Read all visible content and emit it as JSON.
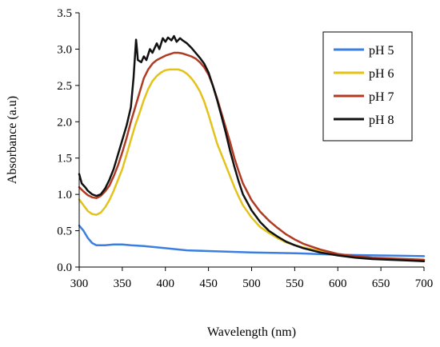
{
  "chart_data": {
    "type": "line",
    "title": "",
    "xlabel": "Wavelength (nm)",
    "ylabel": "Absorbance (a.u)",
    "xlim": [
      300,
      700
    ],
    "ylim": [
      0,
      3.5
    ],
    "xticks": [
      300,
      350,
      400,
      450,
      500,
      550,
      600,
      650,
      700
    ],
    "yticks": [
      0.0,
      0.5,
      1.0,
      1.5,
      2.0,
      2.5,
      3.0,
      3.5
    ],
    "xtick_labels": [
      "300",
      "350",
      "400",
      "450",
      "500",
      "550",
      "600",
      "650",
      "700"
    ],
    "ytick_labels": [
      "0.0",
      "0.5",
      "1.0",
      "1.5",
      "2.0",
      "2.5",
      "3.0",
      "3.5"
    ],
    "grid": false,
    "legend_position": "top-right",
    "series": [
      {
        "name": "pH 5",
        "color": "#3b7fe0",
        "points": [
          [
            300,
            0.57
          ],
          [
            305,
            0.5
          ],
          [
            310,
            0.4
          ],
          [
            315,
            0.33
          ],
          [
            320,
            0.3
          ],
          [
            330,
            0.3
          ],
          [
            340,
            0.31
          ],
          [
            350,
            0.31
          ],
          [
            360,
            0.3
          ],
          [
            375,
            0.29
          ],
          [
            400,
            0.26
          ],
          [
            425,
            0.23
          ],
          [
            450,
            0.22
          ],
          [
            500,
            0.2
          ],
          [
            550,
            0.19
          ],
          [
            600,
            0.17
          ],
          [
            650,
            0.16
          ],
          [
            700,
            0.15
          ]
        ]
      },
      {
        "name": "pH 6",
        "color": "#e3c21a",
        "points": [
          [
            300,
            0.93
          ],
          [
            305,
            0.85
          ],
          [
            310,
            0.77
          ],
          [
            315,
            0.73
          ],
          [
            320,
            0.72
          ],
          [
            325,
            0.75
          ],
          [
            330,
            0.82
          ],
          [
            335,
            0.92
          ],
          [
            340,
            1.05
          ],
          [
            345,
            1.2
          ],
          [
            350,
            1.35
          ],
          [
            355,
            1.55
          ],
          [
            360,
            1.75
          ],
          [
            365,
            1.95
          ],
          [
            370,
            2.12
          ],
          [
            375,
            2.3
          ],
          [
            380,
            2.45
          ],
          [
            385,
            2.56
          ],
          [
            390,
            2.63
          ],
          [
            395,
            2.68
          ],
          [
            400,
            2.71
          ],
          [
            405,
            2.72
          ],
          [
            410,
            2.72
          ],
          [
            415,
            2.72
          ],
          [
            420,
            2.7
          ],
          [
            425,
            2.66
          ],
          [
            430,
            2.6
          ],
          [
            435,
            2.52
          ],
          [
            440,
            2.42
          ],
          [
            445,
            2.28
          ],
          [
            450,
            2.1
          ],
          [
            455,
            1.9
          ],
          [
            460,
            1.7
          ],
          [
            465,
            1.55
          ],
          [
            470,
            1.4
          ],
          [
            475,
            1.25
          ],
          [
            480,
            1.1
          ],
          [
            485,
            0.97
          ],
          [
            490,
            0.85
          ],
          [
            500,
            0.68
          ],
          [
            510,
            0.55
          ],
          [
            520,
            0.47
          ],
          [
            530,
            0.4
          ],
          [
            540,
            0.34
          ],
          [
            550,
            0.3
          ],
          [
            560,
            0.27
          ],
          [
            580,
            0.22
          ],
          [
            600,
            0.17
          ],
          [
            620,
            0.14
          ],
          [
            640,
            0.12
          ],
          [
            660,
            0.11
          ],
          [
            680,
            0.1
          ],
          [
            700,
            0.09
          ]
        ]
      },
      {
        "name": "pH 7",
        "color": "#b03a22",
        "points": [
          [
            300,
            1.1
          ],
          [
            305,
            1.04
          ],
          [
            310,
            0.99
          ],
          [
            315,
            0.96
          ],
          [
            320,
            0.95
          ],
          [
            325,
            0.98
          ],
          [
            330,
            1.04
          ],
          [
            335,
            1.12
          ],
          [
            340,
            1.25
          ],
          [
            345,
            1.4
          ],
          [
            350,
            1.58
          ],
          [
            355,
            1.78
          ],
          [
            360,
            2.0
          ],
          [
            365,
            2.2
          ],
          [
            370,
            2.4
          ],
          [
            375,
            2.6
          ],
          [
            380,
            2.72
          ],
          [
            385,
            2.8
          ],
          [
            390,
            2.85
          ],
          [
            395,
            2.88
          ],
          [
            400,
            2.91
          ],
          [
            405,
            2.93
          ],
          [
            410,
            2.95
          ],
          [
            415,
            2.95
          ],
          [
            420,
            2.94
          ],
          [
            425,
            2.92
          ],
          [
            430,
            2.9
          ],
          [
            435,
            2.87
          ],
          [
            440,
            2.82
          ],
          [
            445,
            2.75
          ],
          [
            450,
            2.65
          ],
          [
            455,
            2.5
          ],
          [
            460,
            2.32
          ],
          [
            465,
            2.12
          ],
          [
            470,
            1.92
          ],
          [
            475,
            1.72
          ],
          [
            480,
            1.5
          ],
          [
            485,
            1.32
          ],
          [
            490,
            1.15
          ],
          [
            500,
            0.92
          ],
          [
            510,
            0.76
          ],
          [
            520,
            0.64
          ],
          [
            530,
            0.54
          ],
          [
            540,
            0.45
          ],
          [
            550,
            0.38
          ],
          [
            560,
            0.32
          ],
          [
            580,
            0.24
          ],
          [
            600,
            0.18
          ],
          [
            620,
            0.15
          ],
          [
            640,
            0.13
          ],
          [
            660,
            0.12
          ],
          [
            680,
            0.11
          ],
          [
            700,
            0.1
          ]
        ]
      },
      {
        "name": "pH 8",
        "color": "#111111",
        "points": [
          [
            300,
            1.28
          ],
          [
            303,
            1.15
          ],
          [
            307,
            1.1
          ],
          [
            310,
            1.05
          ],
          [
            315,
            1.0
          ],
          [
            320,
            0.98
          ],
          [
            325,
            1.0
          ],
          [
            330,
            1.08
          ],
          [
            335,
            1.2
          ],
          [
            340,
            1.35
          ],
          [
            345,
            1.55
          ],
          [
            350,
            1.75
          ],
          [
            355,
            1.95
          ],
          [
            360,
            2.2
          ],
          [
            363,
            2.6
          ],
          [
            365,
            2.95
          ],
          [
            366,
            3.13
          ],
          [
            367,
            3.0
          ],
          [
            368,
            2.85
          ],
          [
            372,
            2.82
          ],
          [
            375,
            2.9
          ],
          [
            378,
            2.85
          ],
          [
            382,
            3.0
          ],
          [
            385,
            2.95
          ],
          [
            390,
            3.08
          ],
          [
            393,
            3.0
          ],
          [
            397,
            3.15
          ],
          [
            400,
            3.1
          ],
          [
            403,
            3.16
          ],
          [
            407,
            3.12
          ],
          [
            410,
            3.18
          ],
          [
            413,
            3.1
          ],
          [
            417,
            3.15
          ],
          [
            420,
            3.12
          ],
          [
            425,
            3.08
          ],
          [
            430,
            3.02
          ],
          [
            435,
            2.95
          ],
          [
            440,
            2.88
          ],
          [
            445,
            2.8
          ],
          [
            450,
            2.68
          ],
          [
            455,
            2.5
          ],
          [
            460,
            2.3
          ],
          [
            465,
            2.08
          ],
          [
            470,
            1.85
          ],
          [
            475,
            1.6
          ],
          [
            480,
            1.38
          ],
          [
            485,
            1.18
          ],
          [
            490,
            1.0
          ],
          [
            500,
            0.78
          ],
          [
            510,
            0.62
          ],
          [
            520,
            0.5
          ],
          [
            530,
            0.42
          ],
          [
            540,
            0.35
          ],
          [
            550,
            0.3
          ],
          [
            560,
            0.26
          ],
          [
            580,
            0.2
          ],
          [
            600,
            0.16
          ],
          [
            620,
            0.13
          ],
          [
            640,
            0.11
          ],
          [
            660,
            0.1
          ],
          [
            680,
            0.09
          ],
          [
            700,
            0.08
          ]
        ]
      }
    ]
  }
}
